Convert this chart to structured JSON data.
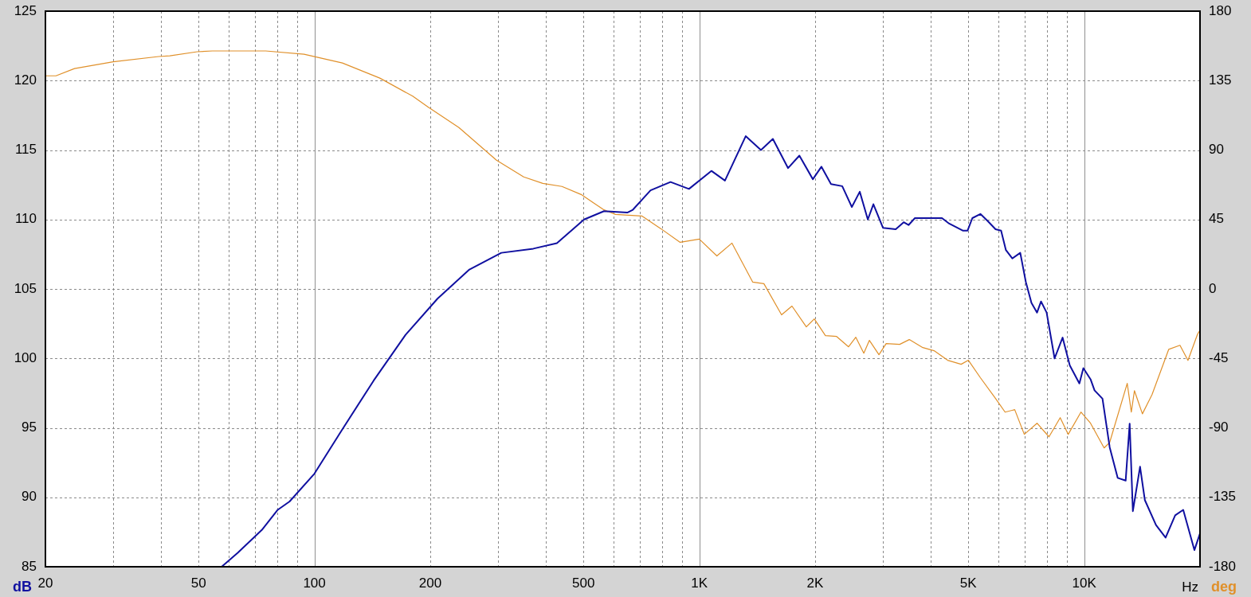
{
  "chart_data": {
    "type": "line",
    "xlabel": "Hz",
    "ylabel": "dB",
    "y2label": "deg",
    "log": "x",
    "grid": true,
    "legend": false,
    "marker": "none",
    "line_style": "solid",
    "xlim": [
      20,
      20000
    ],
    "xticks": [
      20,
      {
        "value": 30,
        "label": null
      },
      {
        "value": 40,
        "label": null
      },
      50,
      {
        "value": 60,
        "label": null
      },
      {
        "value": 70,
        "label": null
      },
      {
        "value": 80,
        "label": null
      },
      {
        "value": 90,
        "label": null
      },
      100,
      200,
      {
        "value": 300,
        "label": null
      },
      {
        "value": 400,
        "label": null
      },
      500,
      {
        "value": 600,
        "label": null
      },
      {
        "value": 700,
        "label": null
      },
      {
        "value": 800,
        "label": null
      },
      {
        "value": 900,
        "label": null
      },
      {
        "value": 1000,
        "label": "1K"
      },
      {
        "value": 2000,
        "label": "2K"
      },
      {
        "value": 3000,
        "label": null
      },
      {
        "value": 4000,
        "label": null
      },
      {
        "value": 5000,
        "label": "5K"
      },
      {
        "value": 6000,
        "label": null
      },
      {
        "value": 7000,
        "label": null
      },
      {
        "value": 8000,
        "label": null
      },
      {
        "value": 9000,
        "label": null
      },
      {
        "value": 10000,
        "label": "10K"
      },
      {
        "value": 20000,
        "label": null
      }
    ],
    "ylim": [
      85,
      125
    ],
    "yticks": [
      85,
      90,
      95,
      100,
      105,
      110,
      115,
      120,
      125
    ],
    "y2lim": [
      -180,
      180
    ],
    "y2ticks": [
      -180,
      -135,
      -90,
      -45,
      0,
      45,
      90,
      135,
      180
    ],
    "series": [
      {
        "color": "#1010a0",
        "axis": "y",
        "x": [
          57.4,
          63.2,
          73.0,
          80.3,
          86.2,
          100,
          117.6,
          142.5,
          172.5,
          208.8,
          252.8,
          305.9,
          370.5,
          426.6,
          501.9,
          565.7,
          650,
          672,
          747,
          842,
          940,
          1075,
          1166,
          1320,
          1446,
          1553,
          1701,
          1820,
          1973,
          2077,
          2199,
          2352,
          2491,
          2612,
          2741,
          2834,
          3001,
          3239,
          3397,
          3497,
          3633,
          4272,
          4461,
          4837,
          4979,
          5123,
          5375,
          5611,
          5886,
          6084,
          6262,
          6506,
          6823,
          7055,
          7296,
          7544,
          7727,
          7989,
          8379,
          8790,
          9176,
          9719,
          9953,
          10390,
          10641,
          11160,
          11652,
          12221,
          12819,
          13130,
          13384,
          13972,
          14380,
          15372,
          16280,
          17240,
          18090,
          19340,
          20000
        ],
        "values": [
          85.0,
          86.0,
          87.65,
          89.1,
          89.7,
          91.7,
          94.8,
          98.4,
          101.7,
          104.3,
          106.4,
          107.6,
          107.9,
          108.3,
          110.0,
          110.6,
          110.5,
          110.7,
          112.1,
          112.7,
          112.2,
          113.5,
          112.8,
          116.0,
          115.0,
          115.8,
          113.7,
          114.6,
          112.9,
          113.8,
          112.55,
          112.4,
          110.9,
          112.0,
          110.0,
          111.1,
          109.4,
          109.3,
          109.8,
          109.6,
          110.1,
          110.1,
          109.7,
          109.2,
          109.2,
          110.1,
          110.4,
          109.9,
          109.3,
          109.2,
          107.8,
          107.2,
          107.6,
          105.5,
          104.0,
          103.3,
          104.1,
          103.3,
          100.0,
          101.5,
          99.5,
          98.2,
          99.3,
          98.5,
          97.7,
          97.1,
          93.6,
          91.4,
          91.2,
          95.3,
          89.0,
          92.2,
          89.8,
          88.0,
          87.1,
          88.7,
          89.1,
          86.2,
          87.4
        ]
      },
      {
        "color": "#e0902a",
        "axis": "y2",
        "x": [
          20,
          21.3,
          23.8,
          30.0,
          39.4,
          42.1,
          49.6,
          54.3,
          74.7,
          94.0,
          118.2,
          147.9,
          180.0,
          197.1,
          237.4,
          297.2,
          349.7,
          392.0,
          439.8,
          493.2,
          563.7,
          605.6,
          709.0,
          795.2,
          891.9,
          1000,
          1111,
          1216,
          1377,
          1472,
          1636,
          1741,
          1897,
          1990,
          2127,
          2274,
          2443,
          2551,
          2676,
          2767,
          2930,
          3059,
          3317,
          3513,
          3809,
          4074,
          4418,
          4791,
          5003,
          5375,
          5886,
          6232,
          6601,
          6990,
          7544,
          8103,
          8665,
          9091,
          9810,
          10390,
          11270,
          11650,
          12940,
          13260,
          13510,
          14170,
          15010,
          16590,
          17740,
          18610,
          19710,
          20000
        ],
        "values": [
          138.1,
          138.1,
          142.8,
          147.2,
          150.6,
          151.1,
          153.7,
          154.2,
          154.2,
          152.1,
          146.4,
          136.6,
          124.9,
          118.0,
          104.6,
          83.4,
          72.6,
          68.4,
          66.4,
          61.2,
          51.4,
          48.3,
          47.3,
          39.0,
          30.2,
          32.3,
          21.4,
          29.7,
          4.4,
          3.4,
          -16.8,
          -11.1,
          -24.6,
          -19.4,
          -30.2,
          -30.8,
          -37.5,
          -31.3,
          -41.6,
          -33.3,
          -42.6,
          -35.4,
          -35.9,
          -32.8,
          -38.0,
          -40.0,
          -46.2,
          -48.8,
          -46.2,
          -57.5,
          -71.0,
          -79.8,
          -78.2,
          -94.2,
          -87.0,
          -95.8,
          -83.4,
          -94.2,
          -79.8,
          -87.0,
          -103.0,
          -99.4,
          -61.2,
          -79.8,
          -65.9,
          -80.9,
          -68.5,
          -39.1,
          -36.5,
          -46.3,
          -29.3,
          -26.7
        ]
      }
    ]
  }
}
